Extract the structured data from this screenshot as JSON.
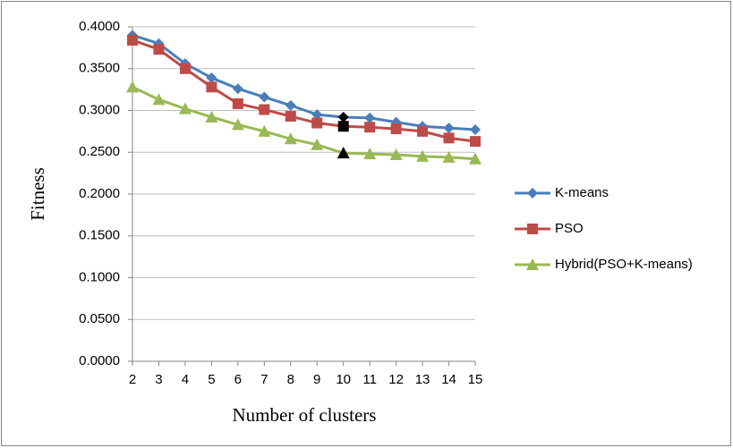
{
  "chart_data": {
    "type": "line",
    "x_label": "Number of clusters",
    "y_label": "Fitness",
    "x": [
      2,
      3,
      4,
      5,
      6,
      7,
      8,
      9,
      10,
      11,
      12,
      13,
      14,
      15
    ],
    "xlim": [
      2,
      15
    ],
    "ylim": [
      0,
      0.4
    ],
    "yticks": [
      {
        "value": 0,
        "label": "0.0000"
      },
      {
        "value": 0.05,
        "label": "0.0500"
      },
      {
        "value": 0.1,
        "label": "0.1000"
      },
      {
        "value": 0.15,
        "label": "0.1500"
      },
      {
        "value": 0.2,
        "label": "0.2000"
      },
      {
        "value": 0.25,
        "label": "0.2500"
      },
      {
        "value": 0.3,
        "label": "0.3000"
      },
      {
        "value": 0.35,
        "label": "0.3500"
      },
      {
        "value": 0.4,
        "label": "0.4000"
      }
    ],
    "grid": true,
    "legend": "right",
    "highlight_x": 10,
    "highlight_color": "#000000",
    "series": [
      {
        "name": "K-means",
        "color": "#4a7ebb",
        "marker": "diamond",
        "values": [
          0.39,
          0.38,
          0.356,
          0.339,
          0.326,
          0.316,
          0.306,
          0.295,
          0.292,
          0.291,
          0.286,
          0.281,
          0.279,
          0.277
        ]
      },
      {
        "name": "PSO",
        "color": "#be4b48",
        "marker": "square",
        "values": [
          0.384,
          0.373,
          0.35,
          0.328,
          0.308,
          0.301,
          0.293,
          0.285,
          0.281,
          0.28,
          0.278,
          0.275,
          0.267,
          0.263
        ]
      },
      {
        "name": "Hybrid(PSO+K-means)",
        "color": "#98b954",
        "marker": "triangle",
        "values": [
          0.328,
          0.313,
          0.302,
          0.292,
          0.283,
          0.275,
          0.266,
          0.259,
          0.249,
          0.248,
          0.247,
          0.245,
          0.244,
          0.242
        ]
      }
    ]
  }
}
